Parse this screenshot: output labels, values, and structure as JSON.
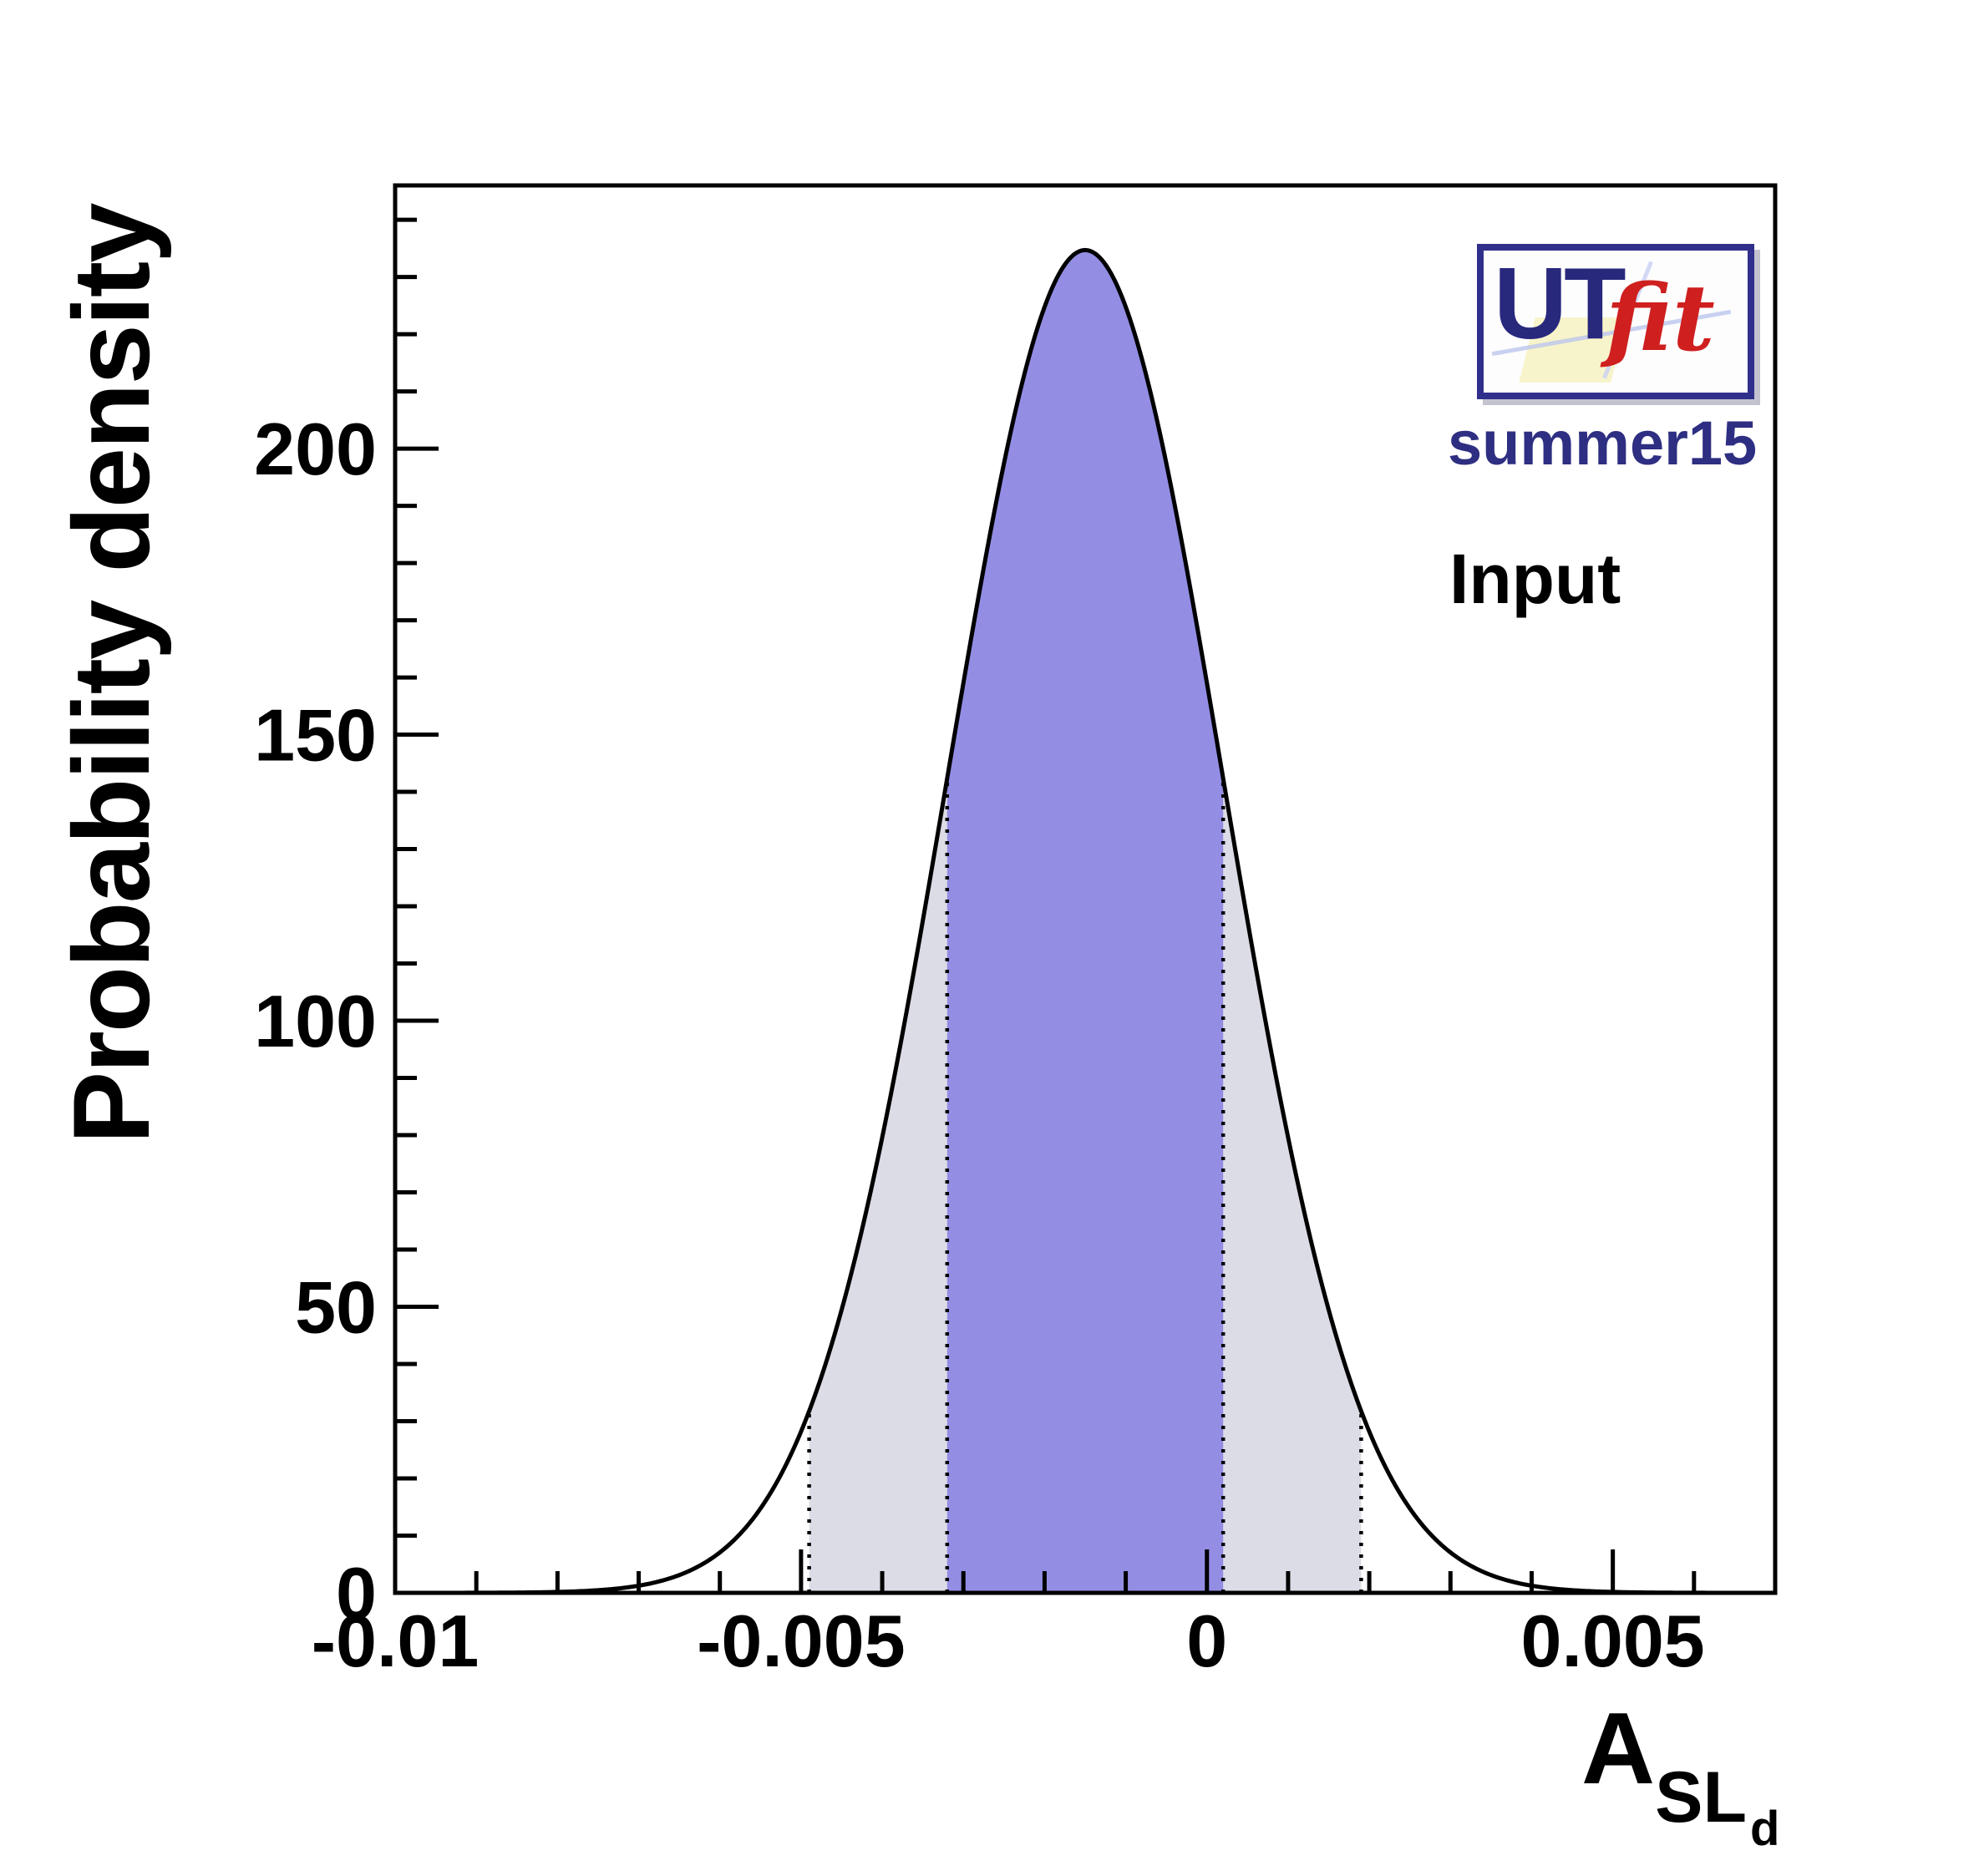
{
  "figure": {
    "y_axis_title": "Probability density",
    "x_axis_title": {
      "base": "A",
      "sub": "SL",
      "subsub": "d"
    },
    "watermark": {
      "logo_main": "UT",
      "logo_accent": "fit",
      "edition": "summer15"
    },
    "annotation": "Input",
    "colors": {
      "navy": "#2e2e82",
      "logo_red": "#cf1f1f",
      "text": "#000000"
    }
  },
  "chart_data": {
    "type": "area",
    "title": "",
    "xlabel": "A_SL_d",
    "ylabel": "Probability density",
    "distribution": "gaussian",
    "mean": -0.0015,
    "sigma": 0.0017,
    "peak_density": 234.7,
    "xlim": [
      -0.01,
      0.007
    ],
    "ylim": [
      0,
      246
    ],
    "x_major_ticks": [
      -0.01,
      -0.005,
      0,
      0.005
    ],
    "x_major_tick_labels": [
      "-0.01",
      "-0.005",
      "0",
      "0.005"
    ],
    "x_minor_tick_step": 0.001,
    "y_major_ticks": [
      0,
      50,
      100,
      150,
      200
    ],
    "y_major_tick_labels": [
      "0",
      "50",
      "100",
      "150",
      "200"
    ],
    "y_minor_tick_step": 10,
    "intervals": {
      "ci68": [
        -0.0032,
        0.0002
      ],
      "ci95": [
        -0.0049,
        0.0019
      ]
    },
    "region_colors": {
      "ci68": "#938ee4",
      "ci95": "#dcdce6"
    },
    "curve_color": "#000000",
    "grid": false,
    "legend": null
  }
}
